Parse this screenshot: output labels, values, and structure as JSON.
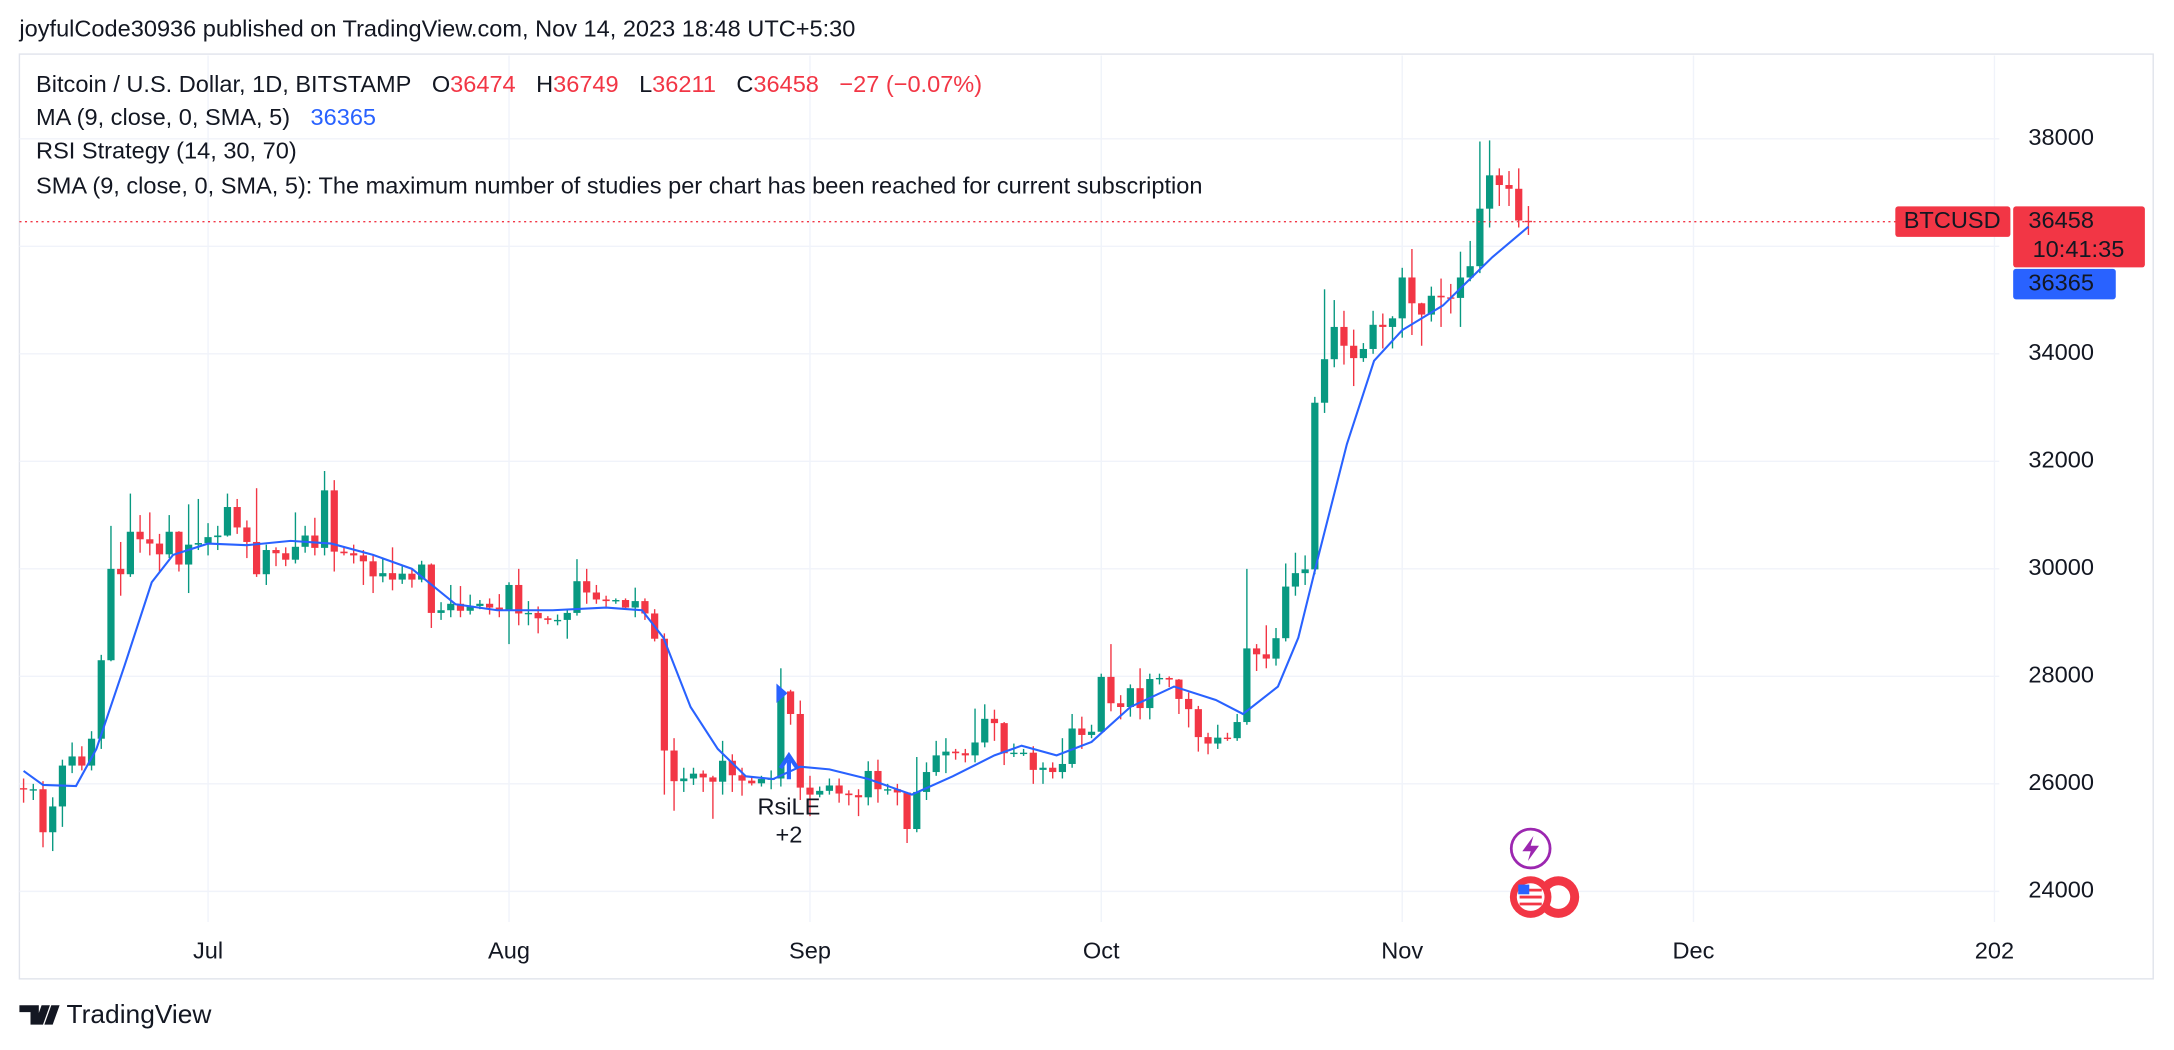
{
  "page": {
    "published": "joyfulCode30936 published on TradingView.com, Nov 14, 2023 18:48 UTC+5:30",
    "brand": "TradingView"
  },
  "chart_data": {
    "type": "candlestick",
    "legend": {
      "symbol": "Bitcoin / U.S. Dollar, 1D, BITSTAMP",
      "open_label": "O",
      "high_label": "H",
      "low_label": "L",
      "close_label": "C",
      "change": "−27 (−0.07%)",
      "ma_title": "MA (9, close, 0, SMA, 5)",
      "rsi_title": "RSI Strategy (14, 30, 70)",
      "sma_error": "SMA (9, close, 0, SMA, 5): The maximum number of studies per chart has been reached for current subscription"
    },
    "ticker": "BTCUSD",
    "countdown": "10:41:35",
    "signal": {
      "label": "RsiLE",
      "qty": "+2"
    },
    "up_color": "#089981",
    "down_color": "#f23645",
    "xlim": [
      -0.43,
      203.5
    ],
    "xticks": [
      {
        "value": 19,
        "label": "Jul"
      },
      {
        "value": 50,
        "label": "Aug"
      },
      {
        "value": 81,
        "label": "Sep"
      },
      {
        "value": 111,
        "label": "Oct"
      },
      {
        "value": 142,
        "label": "Nov"
      },
      {
        "value": 172,
        "label": "Dec"
      },
      {
        "value": 203,
        "label": "202"
      }
    ],
    "ylim": [
      23430,
      39550
    ],
    "yticks": [
      24000,
      26000,
      28000,
      30000,
      32000,
      34000,
      36000,
      38000
    ],
    "grid": true,
    "open": [
      25920,
      25900,
      25900,
      25100,
      25580,
      26340,
      26510,
      26340,
      26840,
      28300,
      30000,
      29900,
      30690,
      30550,
      30470,
      30270,
      30690,
      30080,
      30450,
      30480,
      30590,
      30620,
      31150,
      30770,
      30500,
      29900,
      30350,
      30290,
      30170,
      30410,
      30620,
      30390,
      31460,
      30320,
      30290,
      30250,
      30140,
      29860,
      29920,
      29800,
      29910,
      29800,
      30080,
      29180,
      29230,
      29350,
      29220,
      29310,
      29350,
      29280,
      29230,
      29700,
      29170,
      29180,
      29080,
      29050,
      29050,
      29180,
      29770,
      29560,
      29430,
      29400,
      29420,
      29280,
      29400,
      29170,
      28700,
      26620,
      26050,
      26100,
      26190,
      26120,
      26040,
      26430,
      26160,
      26060,
      26010,
      26090,
      26100,
      27720,
      27300,
      25930,
      25800,
      25870,
      25970,
      25820,
      25790,
      25750,
      26240,
      25900,
      25900,
      25840,
      25160,
      25850,
      26220,
      26530,
      26600,
      26570,
      26530,
      26770,
      27210,
      27130,
      26570,
      26580,
      26580,
      26260,
      26300,
      26220,
      26370,
      27030,
      26910,
      26970,
      27990,
      27500,
      27430,
      27780,
      27410,
      27950,
      27970,
      27940,
      27580,
      27390,
      26870,
      26750,
      26860,
      26850,
      27150,
      28520,
      28410,
      28330,
      28710,
      29670,
      29920,
      29990,
      33090,
      33900,
      34500,
      34150,
      33920,
      34090,
      34540,
      34500,
      34660,
      35420,
      34940,
      34730,
      35080,
      35050,
      35040,
      35420,
      35630,
      36700,
      37320,
      37140,
      37070,
      36474
    ],
    "high": [
      26100,
      26000,
      26050,
      25750,
      26450,
      26770,
      26700,
      26980,
      28400,
      30800,
      30500,
      31400,
      31000,
      31050,
      30650,
      31000,
      30700,
      31200,
      31300,
      30850,
      30800,
      31400,
      31300,
      30900,
      31500,
      30450,
      30400,
      30400,
      31050,
      30800,
      30950,
      31820,
      31650,
      30400,
      30450,
      30350,
      30250,
      30200,
      30400,
      30050,
      30000,
      30150,
      30100,
      29380,
      29700,
      29680,
      29520,
      29420,
      29450,
      29530,
      29750,
      30000,
      29400,
      29300,
      29120,
      29150,
      29250,
      30180,
      30000,
      29700,
      29500,
      29450,
      29450,
      29650,
      29450,
      29250,
      28800,
      26850,
      26300,
      26300,
      26250,
      26150,
      26800,
      26550,
      26300,
      26120,
      26150,
      26250,
      28150,
      27750,
      27550,
      26150,
      25950,
      26100,
      26100,
      25880,
      25900,
      26420,
      26450,
      26000,
      26000,
      25850,
      26500,
      26400,
      26800,
      26850,
      26650,
      26650,
      27400,
      27480,
      27380,
      27150,
      26750,
      26650,
      26700,
      26400,
      26400,
      26850,
      27300,
      27250,
      27100,
      28050,
      28600,
      27650,
      27850,
      28150,
      28050,
      28050,
      28000,
      27950,
      27700,
      27450,
      26950,
      27100,
      26950,
      27300,
      30000,
      28600,
      28950,
      28900,
      30100,
      30300,
      30250,
      33200,
      35200,
      35000,
      34800,
      34450,
      34200,
      34800,
      34750,
      34700,
      35600,
      35950,
      34950,
      35250,
      35400,
      35300,
      35900,
      36100,
      37950,
      37970,
      37450,
      37400,
      37450,
      36749
    ],
    "low": [
      25650,
      25700,
      24820,
      24750,
      25200,
      26200,
      26250,
      26250,
      26650,
      28280,
      29500,
      29850,
      30300,
      30250,
      29950,
      30200,
      29950,
      29550,
      30350,
      30250,
      30350,
      30600,
      30650,
      30200,
      29850,
      29700,
      30050,
      30050,
      30100,
      30300,
      30250,
      30250,
      29950,
      30250,
      30100,
      29700,
      29550,
      29750,
      29600,
      29720,
      29650,
      29750,
      28900,
      29050,
      29100,
      29100,
      29150,
      29250,
      29150,
      29100,
      28600,
      28950,
      28950,
      28800,
      28970,
      28950,
      28700,
      29130,
      29350,
      29350,
      29300,
      29350,
      29250,
      29100,
      29050,
      28650,
      25800,
      25500,
      25850,
      25980,
      25850,
      25350,
      25800,
      25850,
      25780,
      25970,
      25950,
      25900,
      25950,
      27100,
      25700,
      25400,
      25750,
      25800,
      25650,
      25600,
      25400,
      25600,
      25650,
      25800,
      25600,
      24900,
      25100,
      25700,
      26150,
      26200,
      26450,
      26400,
      26400,
      26680,
      26800,
      26350,
      26500,
      26520,
      26000,
      26000,
      26100,
      26100,
      26300,
      26650,
      26850,
      26950,
      27350,
      27200,
      27250,
      27200,
      27200,
      27850,
      27800,
      27300,
      27050,
      26600,
      26550,
      26650,
      26800,
      26800,
      27100,
      28100,
      28150,
      28200,
      28650,
      29500,
      29700,
      29900,
      32900,
      33750,
      33800,
      33400,
      33850,
      34000,
      34100,
      34100,
      34300,
      34350,
      34150,
      34600,
      34500,
      34750,
      34500,
      35350,
      35500,
      36350,
      36750,
      36750,
      36350,
      36211
    ],
    "close": [
      25900,
      25900,
      25100,
      25580,
      26340,
      26510,
      26340,
      26840,
      28300,
      30000,
      29900,
      30690,
      30550,
      30470,
      30270,
      30690,
      30080,
      30450,
      30480,
      30590,
      30620,
      31150,
      30770,
      30500,
      29900,
      30350,
      30290,
      30170,
      30410,
      30620,
      30390,
      31460,
      30320,
      30290,
      30250,
      30140,
      29860,
      29920,
      29800,
      29910,
      29800,
      30080,
      29180,
      29230,
      29350,
      29220,
      29310,
      29350,
      29280,
      29230,
      29700,
      29170,
      29180,
      29080,
      29050,
      29050,
      29180,
      29770,
      29560,
      29430,
      29400,
      29420,
      29280,
      29400,
      29170,
      28700,
      26620,
      26050,
      26100,
      26190,
      26120,
      26040,
      26430,
      26160,
      26060,
      26010,
      26090,
      26100,
      27720,
      27300,
      25930,
      25800,
      25870,
      25970,
      25820,
      25790,
      25750,
      26240,
      25900,
      25900,
      25840,
      25160,
      25850,
      26220,
      26530,
      26600,
      26570,
      26530,
      26770,
      27210,
      27130,
      26570,
      26580,
      26580,
      26260,
      26300,
      26220,
      26370,
      27030,
      26910,
      26970,
      27990,
      27500,
      27430,
      27780,
      27410,
      27950,
      27970,
      27940,
      27580,
      27390,
      26870,
      26750,
      26860,
      26850,
      27150,
      28520,
      28410,
      28330,
      28710,
      29670,
      29920,
      29990,
      33090,
      33900,
      34500,
      34150,
      33920,
      34090,
      34540,
      34500,
      34660,
      35420,
      34940,
      34730,
      35080,
      35050,
      35040,
      35420,
      35630,
      36700,
      37320,
      37140,
      37070,
      36480,
      36458
    ],
    "series": [
      {
        "name": "MA (9, close, 0, SMA, 5)",
        "color": "#2962ff",
        "x": [
          0,
          2,
          5.4,
          7.5,
          10.4,
          13.2,
          15.4,
          19,
          23,
          27.5,
          31.7,
          36,
          40,
          44.5,
          48.8,
          54.5,
          60,
          63.7,
          65.9,
          68.7,
          71.5,
          74.4,
          77.2,
          80,
          83,
          87,
          91.5,
          95.7,
          100,
          102.8,
          106.4,
          110,
          114,
          118.5,
          122.8,
          125.6,
          129.2,
          131.3,
          133.4,
          136.3,
          139.1,
          142,
          146.2,
          148.4,
          151.3,
          155
        ],
        "values": [
          26240,
          25980,
          25960,
          26650,
          28200,
          29750,
          30260,
          30470,
          30440,
          30520,
          30470,
          30260,
          30000,
          29340,
          29230,
          29230,
          29280,
          29230,
          28720,
          27430,
          26650,
          26140,
          26090,
          26320,
          26270,
          26090,
          25800,
          26140,
          26530,
          26710,
          26530,
          26780,
          27430,
          27810,
          27560,
          27300,
          27810,
          28720,
          30260,
          32320,
          33870,
          34440,
          34900,
          35290,
          35800,
          36365
        ]
      }
    ]
  }
}
